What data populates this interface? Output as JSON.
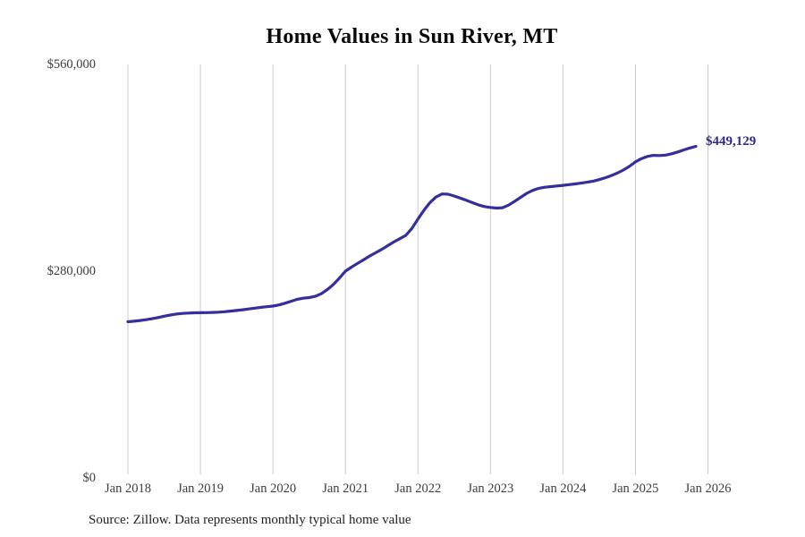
{
  "chart": {
    "title": "Home Values in Sun River, MT",
    "source_note": "Source: Zillow. Data represents monthly typical home value",
    "end_label": "$449,129",
    "colors": {
      "line": "#332f9d",
      "end_label_text": "#2d2a86",
      "grid": "#cbcbcb",
      "tick_text": "#3d3d3d",
      "title_text": "#0a0a0a",
      "source_text": "#1f1f1f",
      "background": "#ffffff"
    }
  },
  "chart_data": {
    "type": "line",
    "title": "Home Values in Sun River, MT",
    "xlabel": "",
    "ylabel": "",
    "x_start": "Jan 2018",
    "x_frequency": "monthly",
    "ylim": [
      0,
      560000
    ],
    "grid": "vertical-only",
    "legend": "none",
    "final_value": 449129,
    "final_value_label": "$449,129",
    "y_ticks": [
      {
        "label": "$0",
        "value": 0
      },
      {
        "label": "$280,000",
        "value": 280000
      },
      {
        "label": "$560,000",
        "value": 560000
      }
    ],
    "x_ticks": [
      {
        "label": "Jan 2018",
        "month_index": 0
      },
      {
        "label": "Jan 2019",
        "month_index": 12
      },
      {
        "label": "Jan 2020",
        "month_index": 24
      },
      {
        "label": "Jan 2021",
        "month_index": 36
      },
      {
        "label": "Jan 2022",
        "month_index": 48
      },
      {
        "label": "Jan 2023",
        "month_index": 60
      },
      {
        "label": "Jan 2024",
        "month_index": 72
      },
      {
        "label": "Jan 2025",
        "month_index": 84
      },
      {
        "label": "Jan 2026",
        "month_index": 96
      }
    ],
    "values": [
      211500,
      212300,
      213200,
      214300,
      215600,
      217200,
      219000,
      220600,
      221900,
      222800,
      223300,
      223600,
      223800,
      223900,
      224100,
      224500,
      225100,
      225900,
      226800,
      227800,
      228900,
      230000,
      231000,
      231900,
      232700,
      234300,
      236600,
      239300,
      241800,
      243400,
      244300,
      246000,
      249500,
      255000,
      262000,
      270500,
      280000,
      285500,
      290500,
      295500,
      300500,
      305000,
      309500,
      314500,
      319500,
      324000,
      328500,
      338000,
      350500,
      362500,
      373000,
      380500,
      384600,
      384300,
      381800,
      379000,
      376000,
      372800,
      369800,
      367500,
      366300,
      365400,
      366000,
      369500,
      374500,
      380000,
      385500,
      389500,
      392200,
      393700,
      394600,
      395400,
      396300,
      397200,
      398200,
      399300,
      400500,
      402000,
      404000,
      406500,
      409500,
      413000,
      417000,
      422000,
      428000,
      432500,
      435500,
      436800,
      436600,
      437200,
      439000,
      441500,
      444300,
      446800,
      449129
    ]
  }
}
